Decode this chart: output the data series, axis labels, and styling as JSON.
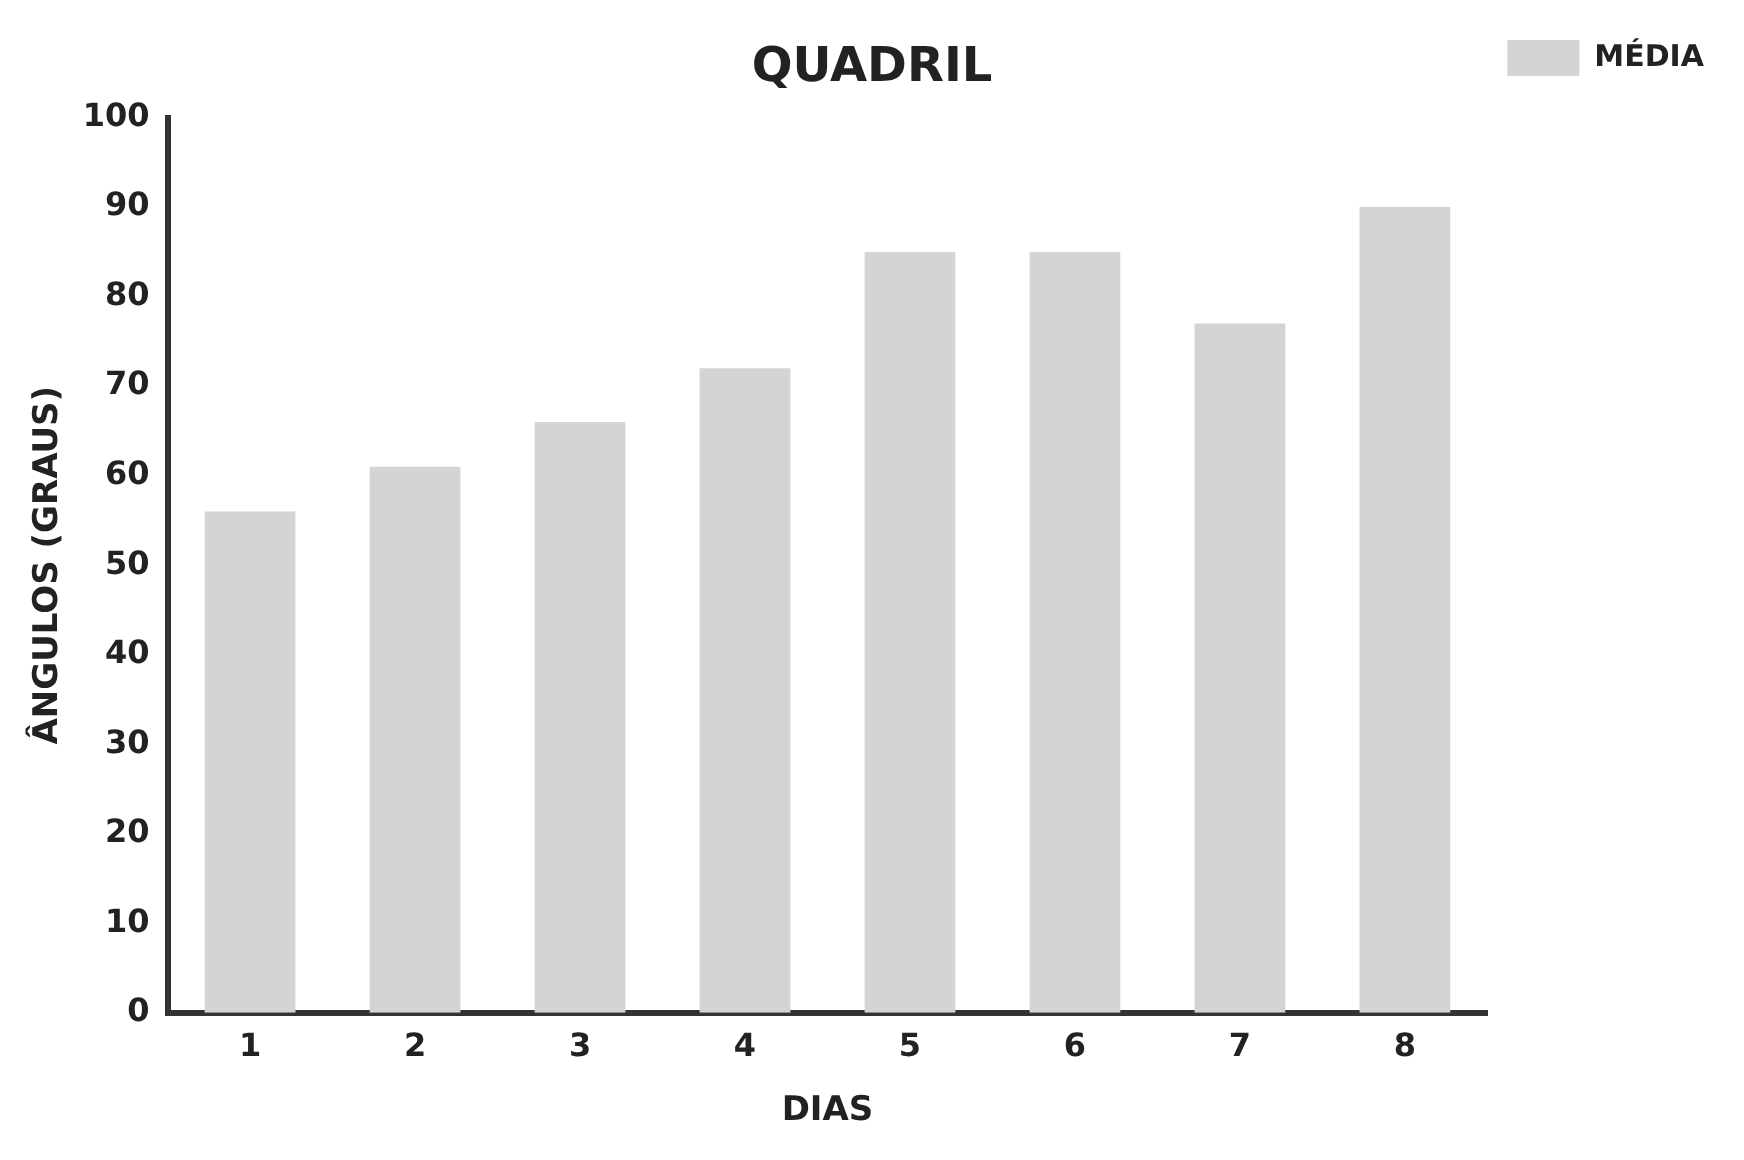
{
  "chart_data": {
    "type": "bar",
    "title": "QUADRIL",
    "xlabel": "DIAS",
    "ylabel": "ÂNGULOS (GRAUS)",
    "categories": [
      "1",
      "2",
      "3",
      "4",
      "5",
      "6",
      "7",
      "8"
    ],
    "series": [
      {
        "name": "MÉDIA",
        "color": "#d4d4d4",
        "values": [
          56,
          61,
          66,
          72,
          85,
          85,
          77,
          90
        ]
      }
    ],
    "ylim": [
      0,
      100
    ],
    "yticks": [
      0,
      10,
      20,
      30,
      40,
      50,
      60,
      70,
      80,
      90,
      100
    ],
    "grid": false,
    "legend": "top right"
  }
}
